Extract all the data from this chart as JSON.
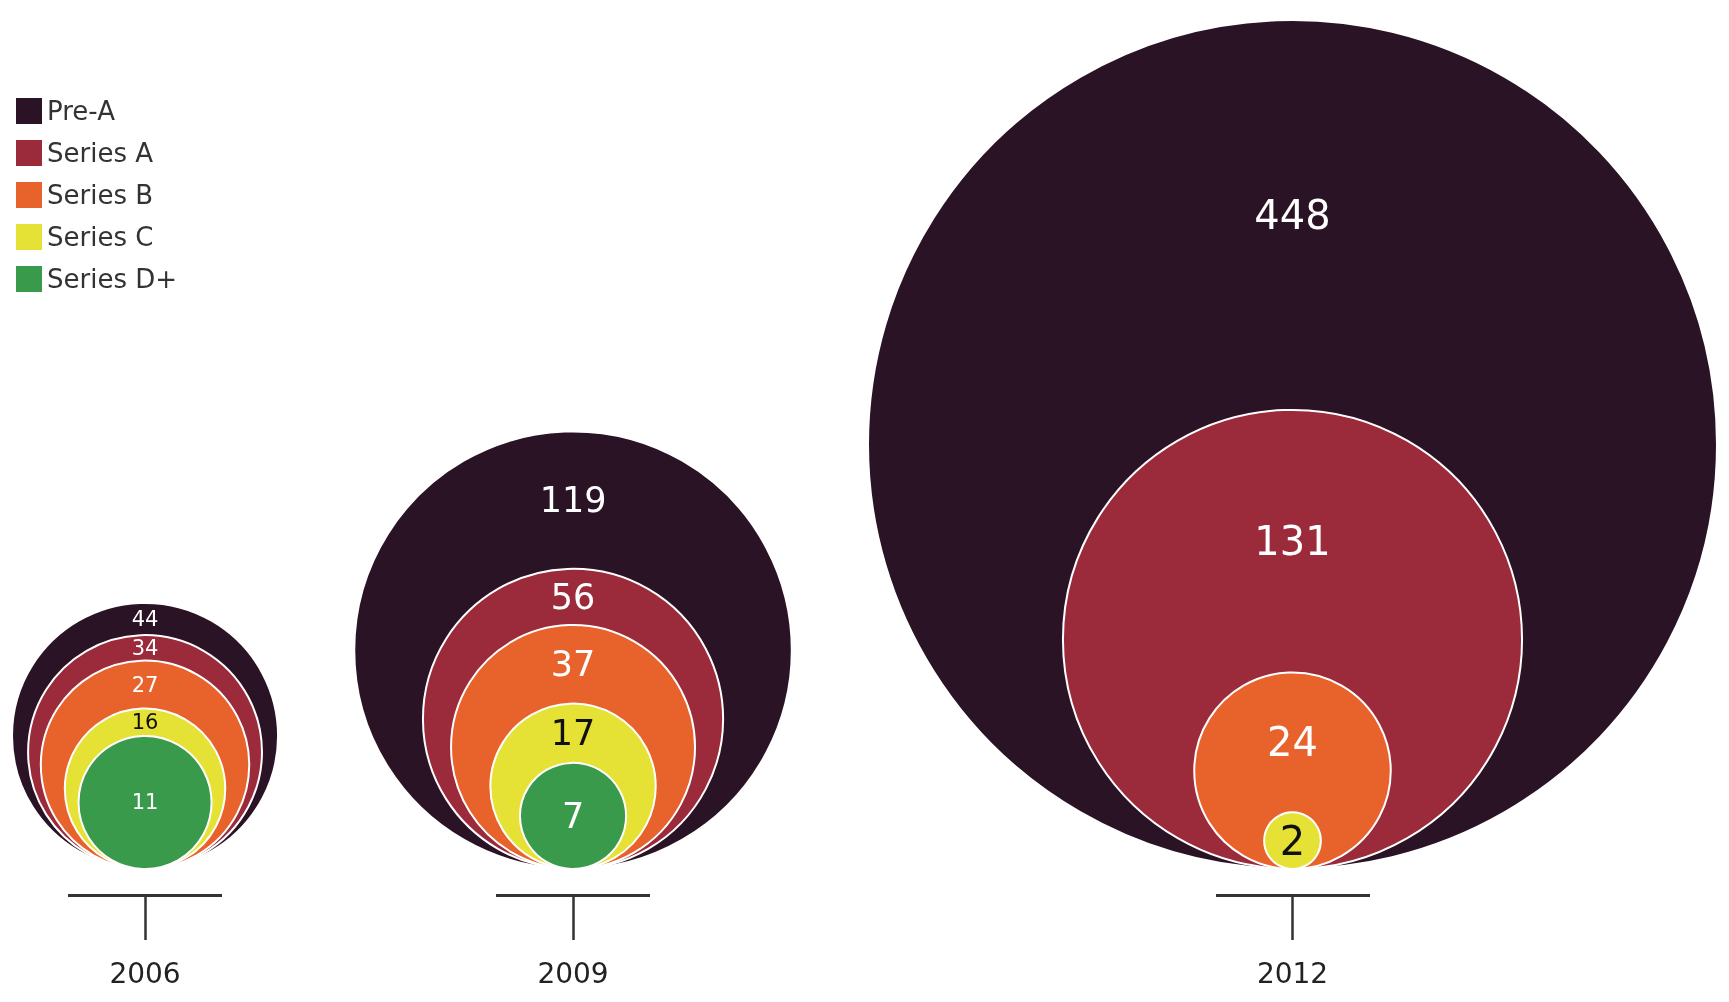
{
  "chart_data": {
    "type": "other",
    "categories": [
      "2006",
      "2009",
      "2012"
    ],
    "series": [
      {
        "name": "Pre-A",
        "color": "#2a1325",
        "values": [
          44,
          119,
          448
        ]
      },
      {
        "name": "Series A",
        "color": "#9b2a3b",
        "values": [
          34,
          56,
          131
        ]
      },
      {
        "name": "Series B",
        "color": "#e8622c",
        "values": [
          27,
          37,
          24
        ]
      },
      {
        "name": "Series C",
        "color": "#e6e235",
        "values": [
          16,
          17,
          2
        ]
      },
      {
        "name": "Series D+",
        "color": "#3a9a4c",
        "values": [
          11,
          7,
          null
        ]
      }
    ],
    "data_labels": true,
    "legend": "top left"
  }
}
